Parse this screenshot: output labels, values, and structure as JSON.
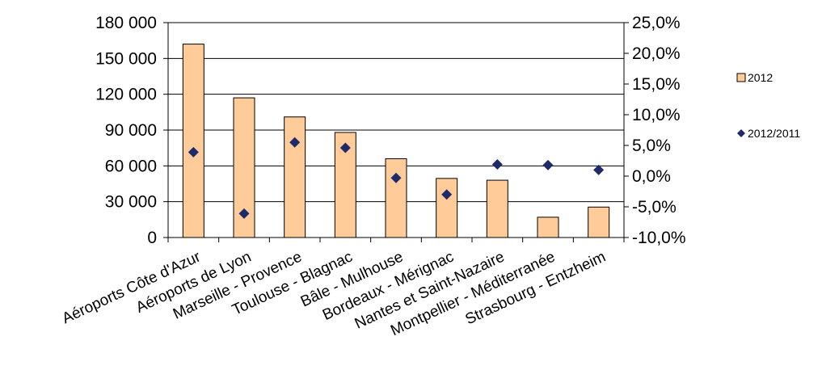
{
  "chart_data": {
    "type": "bar",
    "categories": [
      "Aéroports Côte d'Azur",
      "Aéroports de Lyon",
      "Marseille - Provence",
      "Toulouse - Blagnac",
      "Bâle - Mulhouse",
      "Bordeaux - Mérignac",
      "Nantes et Saint-Nazaire",
      "Montpellier - Méditerranée",
      "Strasbourg - Entzheim"
    ],
    "series": [
      {
        "name": "2012",
        "type": "bar",
        "axis": "left",
        "values": [
          162000,
          117000,
          101000,
          88000,
          66000,
          49500,
          48000,
          17000,
          25500
        ]
      },
      {
        "name": "2012/2011",
        "type": "scatter",
        "axis": "right",
        "values": [
          0.039,
          -0.061,
          0.055,
          0.046,
          -0.003,
          -0.03,
          0.019,
          0.018,
          0.01
        ]
      }
    ],
    "y_left": {
      "lim": [
        0,
        180000
      ],
      "ticks": [
        0,
        30000,
        60000,
        90000,
        120000,
        150000,
        180000
      ],
      "tick_labels": [
        "0",
        "30 000",
        "60 000",
        "90 000",
        "120 000",
        "150 000",
        "180 000"
      ]
    },
    "y_right": {
      "lim": [
        -0.1,
        0.25
      ],
      "ticks": [
        -0.1,
        -0.05,
        0.0,
        0.05,
        0.1,
        0.15,
        0.2,
        0.25
      ],
      "tick_labels": [
        "-10,0%",
        "-5,0%",
        "0,0%",
        "5,0%",
        "10,0%",
        "15,0%",
        "20,0%",
        "25,0%"
      ]
    },
    "grid": true,
    "legend_position": "right",
    "colors": {
      "bar_fill": "#FFCC99",
      "bar_stroke": "#000000",
      "marker": "#1F2A6B",
      "grid": "#000000"
    }
  }
}
